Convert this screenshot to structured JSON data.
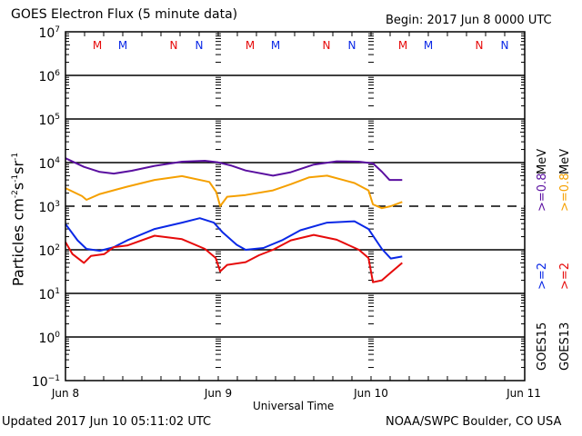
{
  "header": {
    "title": "GOES Electron Flux (5 minute data)",
    "begin": "Begin: 2017 Jun 8 0000 UTC"
  },
  "footer": {
    "updated": "Updated 2017 Jun 10 05:11:02 UTC",
    "credit": "NOAA/SWPC Boulder, CO USA"
  },
  "colors": {
    "goes15_low": "#5a0fa0",
    "goes13_low": "#f5a000",
    "goes15_high": "#0a28e6",
    "goes13_high": "#e60a0a",
    "marker_red": "#e60a0a",
    "marker_blue": "#0a28e6"
  },
  "chart_data": {
    "type": "line",
    "title": "GOES Electron Flux (5 minute data)",
    "xlabel": "Universal Time",
    "ylabel": "Particles cm-2 s-1 sr-1",
    "ylabel_parts": {
      "base": "Particles cm",
      "e1": "-2",
      "s": "s",
      "e2": "-1",
      "sr": "sr",
      "e3": "-1"
    },
    "yscale": "log",
    "ylim": [
      0.1,
      10000000
    ],
    "xlim_hours": [
      0,
      72
    ],
    "x_unit": "hours since 2017 Jun 8 0000 UTC",
    "xticks": [
      {
        "hour": 0,
        "label": "Jun 8"
      },
      {
        "hour": 24,
        "label": "Jun 9"
      },
      {
        "hour": 48,
        "label": "Jun 10"
      },
      {
        "hour": 72,
        "label": "Jun 11"
      }
    ],
    "yticks": [
      {
        "exp": 7,
        "label": "10",
        "sup": "7"
      },
      {
        "exp": 6,
        "label": "10",
        "sup": "6"
      },
      {
        "exp": 5,
        "label": "10",
        "sup": "5"
      },
      {
        "exp": 4,
        "label": "10",
        "sup": "4"
      },
      {
        "exp": 3,
        "label": "10",
        "sup": "3"
      },
      {
        "exp": 2,
        "label": "10",
        "sup": "2"
      },
      {
        "exp": 1,
        "label": "10",
        "sup": "1"
      },
      {
        "exp": 0,
        "label": "10",
        "sup": "0"
      },
      {
        "exp": -1,
        "label": "10",
        "sup": "−1"
      }
    ],
    "gridlines_solid_exp": [
      6,
      5,
      4,
      2,
      1,
      0
    ],
    "gridlines_dashed_exp": [
      3
    ],
    "day_dividers_hours": [
      24,
      48
    ],
    "markers": [
      {
        "hour": 5,
        "label": "M",
        "color": "red"
      },
      {
        "hour": 9,
        "label": "M",
        "color": "blue"
      },
      {
        "hour": 17,
        "label": "N",
        "color": "red"
      },
      {
        "hour": 21,
        "label": "N",
        "color": "blue"
      },
      {
        "hour": 29,
        "label": "M",
        "color": "red"
      },
      {
        "hour": 33,
        "label": "M",
        "color": "blue"
      },
      {
        "hour": 41,
        "label": "N",
        "color": "red"
      },
      {
        "hour": 45,
        "label": "N",
        "color": "blue"
      },
      {
        "hour": 53,
        "label": "M",
        "color": "red"
      },
      {
        "hour": 57,
        "label": "M",
        "color": "blue"
      },
      {
        "hour": 65,
        "label": "N",
        "color": "red"
      },
      {
        "hour": 69,
        "label": "N",
        "color": "blue"
      }
    ],
    "legend": [
      {
        "label": ">=0.8 MeV",
        "satellite": "GOES15",
        "colorKey": "goes15_low"
      },
      {
        "label": ">=0.8 MeV",
        "satellite": "GOES13",
        "colorKey": "goes13_low"
      },
      {
        "label": ">=2",
        "satellite": "GOES15",
        "colorKey": "goes15_high"
      },
      {
        "label": ">=2",
        "satellite": "GOES13",
        "colorKey": "goes13_high"
      }
    ],
    "legend_text": {
      "mev": "MeV",
      "low": ">=0.8",
      "high": ">=2",
      "sat15": "GOES15",
      "sat13": "GOES13"
    },
    "legend_placement": "right",
    "series": [
      {
        "name": "GOES15 >=0.8 MeV",
        "colorKey": "goes15_low",
        "hours": [
          0,
          2.9,
          5.4,
          7.6,
          10.4,
          14,
          18.3,
          21.9,
          24,
          26.1,
          28.3,
          32.6,
          35.4,
          39,
          42.6,
          46.1,
          48.3,
          49.7,
          50.9,
          52.9
        ],
        "values": [
          12600,
          8000,
          6100,
          5600,
          6500,
          8400,
          10500,
          11000,
          10100,
          8500,
          6600,
          5000,
          6000,
          9000,
          10700,
          10500,
          9600,
          6200,
          4000,
          4000
        ]
      },
      {
        "name": "GOES13 >=0.8 MeV",
        "colorKey": "goes13_low",
        "hours": [
          0,
          2.6,
          3.3,
          5.4,
          9.7,
          14,
          18.3,
          22.6,
          23.7,
          24.3,
          25.4,
          28.3,
          32.6,
          35.4,
          38.3,
          41.1,
          45.4,
          47.6,
          48.3,
          49.7,
          51.1,
          52.9
        ],
        "values": [
          2600,
          1700,
          1400,
          1900,
          2800,
          4000,
          4900,
          3600,
          2100,
          1000,
          1650,
          1800,
          2300,
          3200,
          4600,
          5000,
          3400,
          2300,
          1100,
          900,
          1000,
          1250
        ]
      },
      {
        "name": "GOES15 >=2 MeV",
        "colorKey": "goes15_high",
        "hours": [
          0,
          1.9,
          3.3,
          5.4,
          7.6,
          9.7,
          14,
          18.3,
          21.1,
          23.3,
          24.7,
          26.9,
          28.3,
          31.1,
          34,
          36.9,
          41.1,
          45.4,
          47.6,
          49.7,
          51.1,
          52.9
        ],
        "values": [
          390,
          165,
          105,
          95,
          115,
          165,
          300,
          420,
          530,
          420,
          250,
          130,
          100,
          110,
          165,
          280,
          420,
          450,
          300,
          105,
          63,
          70
        ]
      },
      {
        "name": "GOES13 >=2 MeV",
        "colorKey": "goes13_high",
        "hours": [
          0,
          1.1,
          2.9,
          4,
          6.1,
          7.6,
          9.7,
          14,
          18.3,
          21.9,
          23.6,
          24.3,
          25.4,
          28.3,
          30.4,
          32.6,
          35.4,
          39,
          42.6,
          46.1,
          47.6,
          48.3,
          49.7,
          51.1,
          52.9
        ],
        "values": [
          150,
          80,
          50,
          72,
          80,
          115,
          125,
          210,
          175,
          105,
          65,
          32,
          45,
          52,
          75,
          100,
          165,
          220,
          170,
          100,
          65,
          18,
          20,
          30,
          50
        ]
      }
    ]
  }
}
